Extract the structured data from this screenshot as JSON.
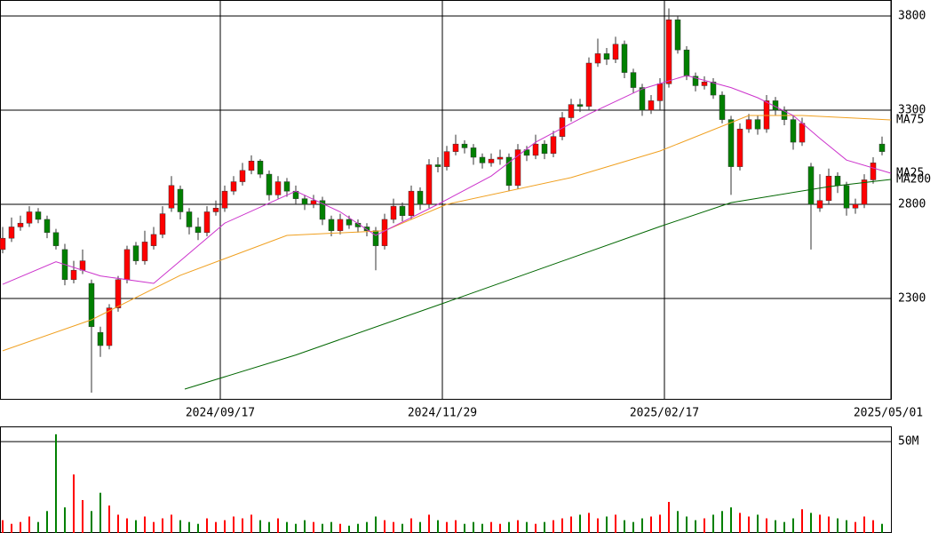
{
  "chart_data": {
    "type": "candlestick",
    "xlim": [
      -0.6,
      200
    ],
    "xticks": [
      {
        "value": 49,
        "label": "2024/09/17"
      },
      {
        "value": 99,
        "label": "2024/11/29"
      },
      {
        "value": 149,
        "label": "2025/02/17"
      },
      {
        "value": 200,
        "label": "2025/05/01"
      }
    ],
    "ylim": [
      1767,
      3885
    ],
    "yticks": [
      2300,
      2800,
      3300,
      3800
    ],
    "up_color": "#ff0000",
    "down_color": "#008000",
    "x": [
      0,
      2,
      4,
      6,
      8,
      10,
      12,
      14,
      16,
      18,
      20,
      22,
      24,
      26,
      28,
      30,
      32,
      34,
      36,
      38,
      40,
      42,
      44,
      46,
      48,
      50,
      52,
      54,
      56,
      58,
      60,
      62,
      64,
      66,
      68,
      70,
      72,
      74,
      76,
      78,
      80,
      82,
      84,
      86,
      88,
      90,
      92,
      94,
      96,
      98,
      100,
      102,
      104,
      106,
      108,
      110,
      112,
      114,
      116,
      118,
      120,
      122,
      124,
      126,
      128,
      130,
      132,
      134,
      136,
      138,
      140,
      142,
      144,
      146,
      148,
      150,
      152,
      154,
      156,
      158,
      160,
      162,
      164,
      166,
      168,
      170,
      172,
      174,
      176,
      178,
      180,
      182,
      184,
      186,
      188,
      190,
      192,
      194,
      196,
      198
    ],
    "open": [
      2560,
      2620,
      2680,
      2700,
      2760,
      2720,
      2650,
      2560,
      2400,
      2450,
      2380,
      2120,
      2050,
      2250,
      2400,
      2580,
      2500,
      2580,
      2640,
      2780,
      2880,
      2760,
      2680,
      2650,
      2760,
      2780,
      2870,
      2920,
      2980,
      3030,
      2960,
      2850,
      2920,
      2870,
      2830,
      2800,
      2820,
      2720,
      2660,
      2720,
      2700,
      2680,
      2660,
      2580,
      2720,
      2790,
      2740,
      2870,
      2800,
      3010,
      3000,
      3080,
      3120,
      3100,
      3050,
      3020,
      3040,
      3050,
      2900,
      3090,
      3060,
      3120,
      3070,
      3160,
      3260,
      3330,
      3320,
      3550,
      3600,
      3570,
      3650,
      3500,
      3420,
      3300,
      3350,
      3440,
      3780,
      3620,
      3480,
      3430,
      3450,
      3380,
      3250,
      3000,
      3200,
      3250,
      3200,
      3350,
      3300,
      3250,
      3130,
      3000,
      2780,
      2820,
      2950,
      2900,
      2780,
      2800,
      2930,
      3120
    ],
    "high": [
      2680,
      2730,
      2740,
      2790,
      2780,
      2740,
      2670,
      2590,
      2500,
      2560,
      2400,
      2150,
      2270,
      2420,
      2580,
      2600,
      2660,
      2680,
      2790,
      2950,
      2900,
      2780,
      2730,
      2790,
      2820,
      2900,
      2950,
      3020,
      3060,
      3040,
      2980,
      2950,
      2940,
      2900,
      2850,
      2850,
      2840,
      2740,
      2750,
      2740,
      2720,
      2700,
      2680,
      2750,
      2830,
      2810,
      2900,
      2890,
      3040,
      3050,
      3110,
      3170,
      3140,
      3120,
      3070,
      3070,
      3090,
      3070,
      3120,
      3110,
      3170,
      3140,
      3190,
      3290,
      3360,
      3360,
      3580,
      3680,
      3630,
      3690,
      3670,
      3520,
      3440,
      3380,
      3470,
      3840,
      3800,
      3640,
      3500,
      3480,
      3470,
      3400,
      3270,
      3230,
      3280,
      3270,
      3380,
      3370,
      3320,
      3270,
      3260,
      3020,
      2960,
      2990,
      2970,
      2920,
      2830,
      2960,
      3050,
      3160
    ],
    "low": [
      2540,
      2600,
      2660,
      2680,
      2700,
      2620,
      2560,
      2370,
      2380,
      2430,
      1800,
      1990,
      2030,
      2230,
      2380,
      2480,
      2480,
      2560,
      2620,
      2760,
      2720,
      2640,
      2610,
      2630,
      2740,
      2760,
      2850,
      2900,
      2960,
      2940,
      2820,
      2830,
      2840,
      2800,
      2770,
      2780,
      2690,
      2630,
      2640,
      2670,
      2650,
      2630,
      2450,
      2560,
      2700,
      2710,
      2720,
      2770,
      2780,
      2970,
      2980,
      3060,
      3070,
      3010,
      2990,
      3000,
      3010,
      2870,
      2880,
      3030,
      3040,
      3040,
      3050,
      3140,
      3240,
      3290,
      3300,
      3530,
      3540,
      3550,
      3470,
      3390,
      3270,
      3280,
      3300,
      3420,
      3600,
      3460,
      3400,
      3410,
      3360,
      3230,
      2850,
      2980,
      3180,
      3170,
      3180,
      3270,
      3220,
      3090,
      3110,
      2560,
      2760,
      2800,
      2860,
      2740,
      2750,
      2780,
      2910,
      3060
    ],
    "close": [
      2620,
      2680,
      2700,
      2760,
      2720,
      2650,
      2580,
      2400,
      2450,
      2500,
      2150,
      2050,
      2250,
      2400,
      2560,
      2500,
      2600,
      2640,
      2750,
      2900,
      2760,
      2680,
      2650,
      2760,
      2780,
      2870,
      2920,
      2980,
      3030,
      2960,
      2850,
      2920,
      2870,
      2830,
      2800,
      2820,
      2720,
      2660,
      2720,
      2690,
      2680,
      2660,
      2580,
      2720,
      2790,
      2740,
      2870,
      2800,
      3010,
      3000,
      3080,
      3120,
      3100,
      3050,
      3020,
      3040,
      3050,
      2900,
      3090,
      3060,
      3120,
      3070,
      3160,
      3260,
      3330,
      3320,
      3550,
      3600,
      3570,
      3650,
      3500,
      3420,
      3300,
      3350,
      3440,
      3780,
      3620,
      3480,
      3430,
      3450,
      3380,
      3250,
      3000,
      3200,
      3250,
      3200,
      3350,
      3300,
      3250,
      3130,
      3230,
      2800,
      2820,
      2950,
      2900,
      2780,
      2800,
      2930,
      3020,
      3080
    ],
    "lines": [
      {
        "name": "MA75",
        "color": "#f0a020",
        "x": [
          0,
          20,
          40,
          64,
          86,
          100,
          128,
          148,
          168,
          180,
          200
        ],
        "values": [
          2022,
          2187,
          2423,
          2635,
          2660,
          2800,
          2942,
          3083,
          3272,
          3272,
          3248
        ]
      },
      {
        "name": "MA25",
        "color": "#cc33cc",
        "x": [
          0,
          12,
          22,
          34,
          40,
          50,
          66,
          76,
          84,
          98,
          110,
          120,
          132,
          144,
          154,
          164,
          170,
          178,
          184,
          190,
          200
        ],
        "values": [
          2375,
          2495,
          2420,
          2380,
          2500,
          2700,
          2870,
          2760,
          2635,
          2800,
          2950,
          3130,
          3280,
          3413,
          3484,
          3420,
          3366,
          3272,
          3150,
          3035,
          2965
        ]
      },
      {
        "name": "MA200",
        "color": "#006600",
        "x": [
          41,
          66,
          100,
          148,
          164,
          186,
          200
        ],
        "values": [
          1819,
          2000,
          2281,
          2682,
          2809,
          2894,
          2932
        ]
      }
    ],
    "volume": [
      7,
      5,
      6,
      9,
      6,
      12,
      54,
      14,
      32,
      18,
      12,
      22,
      15,
      10,
      8,
      7,
      9,
      6,
      8,
      10,
      7,
      6,
      5,
      8,
      6,
      7,
      9,
      8,
      10,
      7,
      6,
      8,
      6,
      5,
      7,
      6,
      5,
      6,
      5,
      4,
      5,
      6,
      9,
      7,
      6,
      5,
      8,
      6,
      10,
      7,
      6,
      7,
      5,
      6,
      5,
      6,
      5,
      6,
      7,
      6,
      5,
      6,
      7,
      8,
      9,
      10,
      11,
      8,
      9,
      10,
      7,
      6,
      8,
      9,
      10,
      17,
      12,
      9,
      7,
      8,
      10,
      12,
      14,
      11,
      9,
      10,
      8,
      7,
      6,
      8,
      13,
      11,
      10,
      9,
      8,
      7,
      6,
      9,
      7,
      5
    ],
    "volume_ylim": [
      0,
      58.3
    ],
    "volume_yticks": [
      {
        "value": 50,
        "label": "50M"
      }
    ]
  }
}
